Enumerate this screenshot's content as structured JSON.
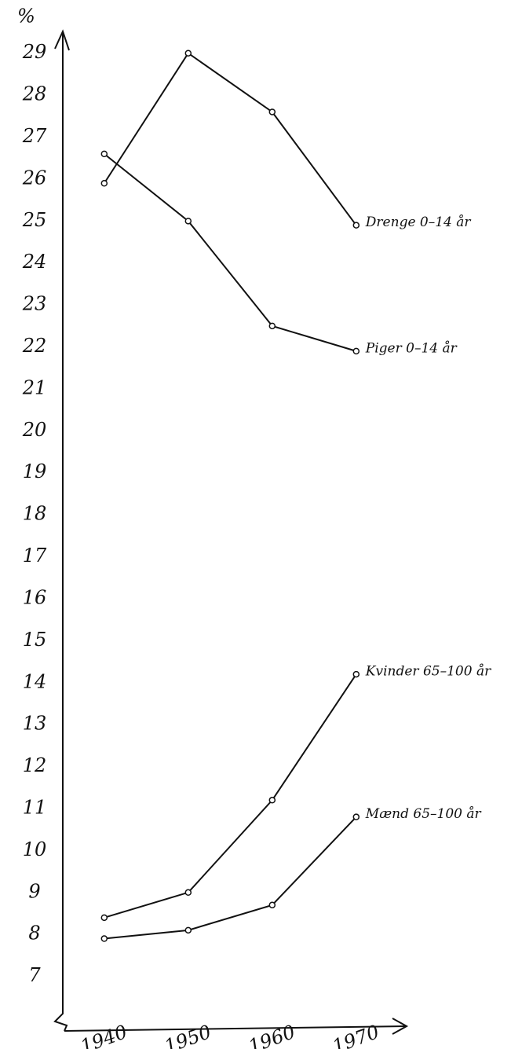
{
  "chart_data": {
    "type": "line",
    "ylabel": "%",
    "x": [
      1940,
      1950,
      1960,
      1970
    ],
    "xlim": [
      1936,
      1976
    ],
    "xticks": [
      1940,
      1950,
      1960,
      1970
    ],
    "ylim": [
      6,
      29.5
    ],
    "yticks": [
      7,
      8,
      9,
      10,
      11,
      12,
      13,
      14,
      15,
      16,
      17,
      18,
      19,
      20,
      21,
      22,
      23,
      24,
      25,
      26,
      27,
      28,
      29
    ],
    "grid": false,
    "series": [
      {
        "name": "Drenge 0–14 år",
        "color": "#111111",
        "values": [
          25.9,
          29.0,
          27.6,
          24.9
        ]
      },
      {
        "name": "Piger 0–14 år",
        "color": "#111111",
        "values": [
          26.6,
          25.0,
          22.5,
          21.9
        ]
      },
      {
        "name": "Kvinder 65–100 år",
        "color": "#111111",
        "values": [
          8.4,
          9.0,
          11.2,
          14.2
        ]
      },
      {
        "name": "Mænd 65–100 år",
        "color": "#111111",
        "values": [
          7.9,
          8.1,
          8.7,
          10.8
        ]
      }
    ]
  }
}
